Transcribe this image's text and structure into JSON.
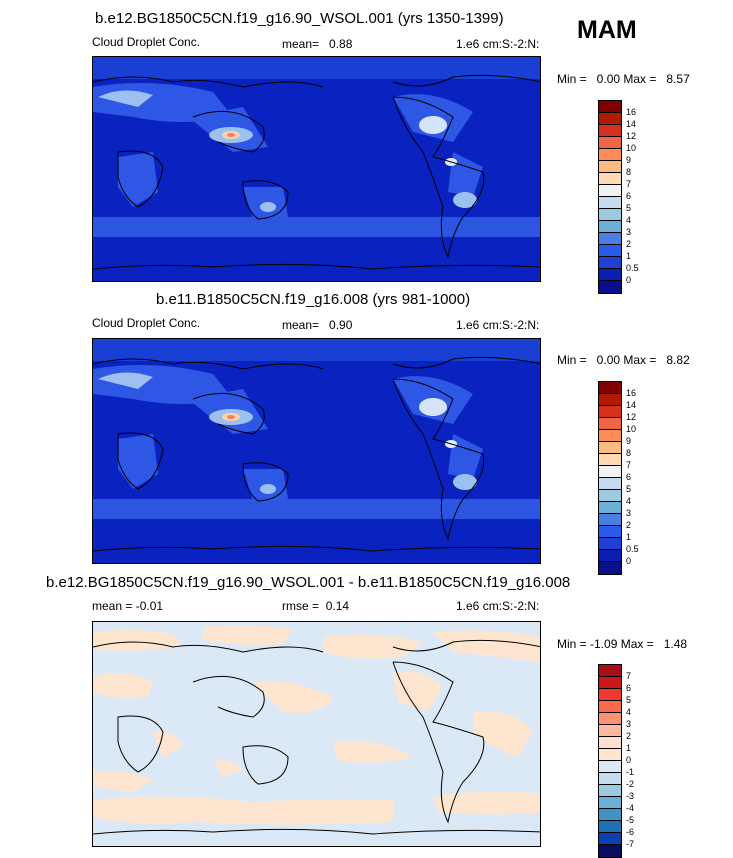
{
  "season": "MAM",
  "panels": [
    {
      "title": "b.e12.BG1850C5CN.f19_g16.90_WSOL.001 (yrs 1350-1399)",
      "left_label": "Cloud Droplet Conc.",
      "mid_label": "mean=",
      "mid_value": "0.88",
      "right_label": "1.e6 cm:S:-2:N:",
      "minmax": "Min =   0.00 Max =   8.57",
      "levels": [
        "16",
        "14",
        "12",
        "10",
        "9",
        "8",
        "7",
        "6",
        "5",
        "4",
        "3",
        "2",
        "1",
        "0.5",
        "0"
      ],
      "colors": [
        "#7f0000",
        "#b31b00",
        "#d7301f",
        "#ef6548",
        "#fc8d59",
        "#fdbb84",
        "#fdd9b5",
        "#f2f2f2",
        "#c6dbef",
        "#9ecae1",
        "#6baed6",
        "#4a7ee0",
        "#2a5be8",
        "#1f3fd6",
        "#0a1fb0",
        "#08108c"
      ]
    },
    {
      "title": "b.e11.B1850C5CN.f19_g16.008 (yrs 981-1000)",
      "left_label": "Cloud Droplet Conc.",
      "mid_label": "mean=",
      "mid_value": "0.90",
      "right_label": "1.e6 cm:S:-2:N:",
      "minmax": "Min =   0.00 Max =   8.82",
      "levels": [
        "16",
        "14",
        "12",
        "10",
        "9",
        "8",
        "7",
        "6",
        "5",
        "4",
        "3",
        "2",
        "1",
        "0.5",
        "0"
      ],
      "colors": [
        "#7f0000",
        "#b31b00",
        "#d7301f",
        "#ef6548",
        "#fc8d59",
        "#fdbb84",
        "#fdd9b5",
        "#f2f2f2",
        "#c6dbef",
        "#9ecae1",
        "#6baed6",
        "#4a7ee0",
        "#2a5be8",
        "#1f3fd6",
        "#0a1fb0",
        "#08108c"
      ]
    },
    {
      "title": "b.e12.BG1850C5CN.f19_g16.90_WSOL.001 - b.e11.B1850C5CN.f19_g16.008",
      "left_label": "mean = -0.01",
      "mid_label": "rmse =",
      "mid_value": "0.14",
      "right_label": "1.e6 cm:S:-2:N:",
      "minmax": "Min = -1.09 Max =   1.48",
      "levels": [
        "7",
        "6",
        "5",
        "4",
        "3",
        "2",
        "1",
        "0",
        "-1",
        "-2",
        "-3",
        "-4",
        "-5",
        "-6",
        "-7"
      ],
      "colors": [
        "#a50f15",
        "#cb181d",
        "#ef3b2c",
        "#fb6a4a",
        "#fc9272",
        "#fcbba1",
        "#fee0d2",
        "#fde5d0",
        "#dbe9f6",
        "#c6dbef",
        "#9ecae1",
        "#6baed6",
        "#4292c6",
        "#2171b5",
        "#1040b0",
        "#08105e"
      ]
    }
  ]
}
